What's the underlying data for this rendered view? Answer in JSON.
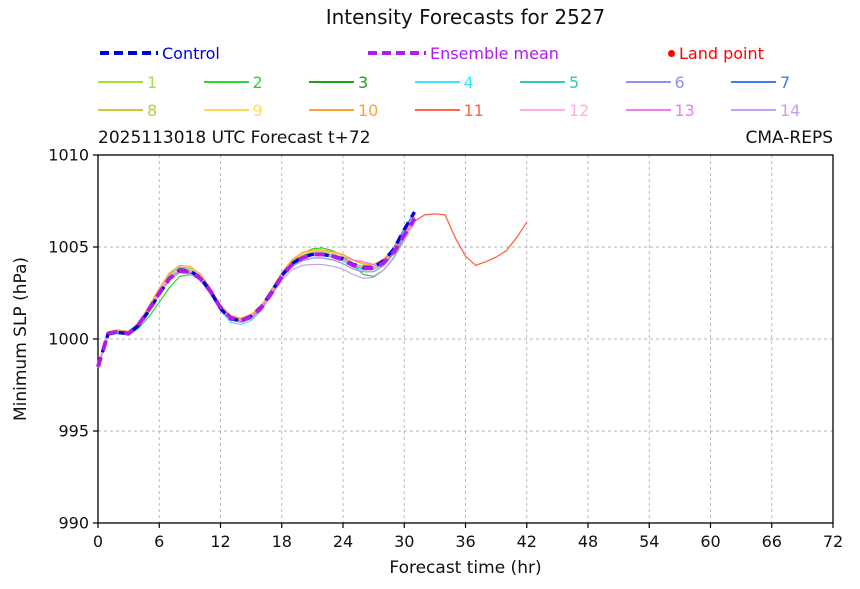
{
  "title": "Intensity Forecasts for 2527",
  "header": {
    "run_label": "2025113018 UTC Forecast t+72",
    "model_label": "CMA-REPS"
  },
  "legend": {
    "control": {
      "label": "Control",
      "color": "#0000e0"
    },
    "ensemble_mean": {
      "label": "Ensemble mean",
      "color": "#b31aee"
    },
    "land_point": {
      "label": "Land point",
      "color": "#ff0000"
    },
    "members": [
      {
        "label": "1",
        "color": "#9fe22f"
      },
      {
        "label": "2",
        "color": "#2fd32f"
      },
      {
        "label": "3",
        "color": "#1ca11c"
      },
      {
        "label": "4",
        "color": "#3ae4ff"
      },
      {
        "label": "5",
        "color": "#2fc9b5"
      },
      {
        "label": "6",
        "color": "#9090f2"
      },
      {
        "label": "7",
        "color": "#3c7cf0"
      },
      {
        "label": "8",
        "color": "#c6c83e"
      },
      {
        "label": "9",
        "color": "#ffd95c"
      },
      {
        "label": "10",
        "color": "#ffa03e"
      },
      {
        "label": "11",
        "color": "#ff6448"
      },
      {
        "label": "12",
        "color": "#ffaeea"
      },
      {
        "label": "13",
        "color": "#f07de8"
      },
      {
        "label": "14",
        "color": "#c2a2f2"
      }
    ]
  },
  "chart_data": {
    "type": "line",
    "title": "Intensity Forecasts for 2527",
    "xlabel": "Forecast time (hr)",
    "ylabel": "Minimum SLP (hPa)",
    "xlim": [
      0,
      72
    ],
    "ylim": [
      990,
      1010
    ],
    "xticks": [
      0,
      6,
      12,
      18,
      24,
      30,
      36,
      42,
      48,
      54,
      60,
      66,
      72
    ],
    "yticks": [
      990,
      995,
      1000,
      1005,
      1010
    ],
    "grid": true,
    "legend_position": "top",
    "x_unit": "hr",
    "series": [
      {
        "name": "1",
        "color": "#9fe22f",
        "width": 1.2,
        "x_start": 0,
        "x_step": 1,
        "values": [
          998.6,
          1000.35,
          1000.45,
          1000.4,
          1000.9,
          1001.7,
          1002.6,
          1003.4,
          1003.8,
          1003.75,
          1003.4,
          1002.7,
          1001.8,
          1001.25,
          1001.1,
          1001.3,
          1001.8,
          1002.6,
          1003.5,
          1004.2,
          1004.55,
          1004.75,
          1004.75,
          1004.65,
          1004.4,
          1004.1,
          1003.95,
          1003.95,
          1004.25,
          1004.85,
          1005.75,
          1006.65
        ]
      },
      {
        "name": "2",
        "color": "#2fd32f",
        "width": 1.2,
        "x_start": 0,
        "x_step": 1,
        "values": [
          998.5,
          1000.25,
          1000.3,
          1000.2,
          1000.6,
          1001.2,
          1002.0,
          1002.8,
          1003.4,
          1003.5,
          1003.3,
          1002.6,
          1001.7,
          1001.1,
          1001.0,
          1001.25,
          1001.8,
          1002.7,
          1003.6,
          1004.25,
          1004.65,
          1004.9,
          1004.95,
          1004.8,
          1004.5,
          1004.0,
          1003.5,
          1003.4,
          1003.75,
          1004.45,
          1005.55,
          1006.5
        ]
      },
      {
        "name": "3",
        "color": "#1ca11c",
        "width": 1.2,
        "x_start": 0,
        "x_step": 1,
        "values": [
          998.45,
          1000.25,
          1000.35,
          1000.25,
          1000.75,
          1001.55,
          1002.45,
          1003.25,
          1003.65,
          1003.6,
          1003.25,
          1002.55,
          1001.65,
          1001.1,
          1000.95,
          1001.15,
          1001.65,
          1002.45,
          1003.35,
          1004.0,
          1004.35,
          1004.55,
          1004.55,
          1004.45,
          1004.25,
          1003.95,
          1003.8,
          1003.8,
          1004.1,
          1004.7,
          1005.6,
          1006.5
        ]
      },
      {
        "name": "4",
        "color": "#3ae4ff",
        "width": 1.2,
        "x_start": 0,
        "x_step": 1,
        "values": [
          998.5,
          1000.2,
          1000.3,
          1000.25,
          1000.7,
          1001.5,
          1002.4,
          1003.2,
          1003.6,
          1003.55,
          1003.2,
          1002.5,
          1001.55,
          1000.9,
          1000.8,
          1001.0,
          1001.55,
          1002.4,
          1003.3,
          1004.0,
          1004.35,
          1004.55,
          1004.55,
          1004.45,
          1004.25,
          1003.95,
          1003.75,
          1003.8,
          1004.15,
          1004.85,
          1005.95,
          1006.85
        ]
      },
      {
        "name": "5",
        "color": "#2fc9b5",
        "width": 1.2,
        "x_start": 0,
        "x_step": 1,
        "values": [
          998.55,
          1000.35,
          1000.45,
          1000.35,
          1000.85,
          1001.7,
          1002.65,
          1003.5,
          1003.9,
          1003.85,
          1003.45,
          1002.7,
          1001.75,
          1001.2,
          1001.05,
          1001.25,
          1001.75,
          1002.55,
          1003.45,
          1004.1,
          1004.45,
          1004.65,
          1004.65,
          1004.55,
          1004.35,
          1004.05,
          1003.9,
          1003.9,
          1004.2,
          1004.8,
          1005.7,
          1006.6
        ]
      },
      {
        "name": "6",
        "color": "#9090f2",
        "width": 1.2,
        "x_start": 0,
        "x_step": 1,
        "values": [
          998.5,
          1000.3,
          1000.4,
          1000.3,
          1000.8,
          1001.6,
          1002.5,
          1003.3,
          1003.7,
          1003.65,
          1003.3,
          1002.6,
          1001.7,
          1001.15,
          1001.0,
          1001.2,
          1001.7,
          1002.5,
          1003.35,
          1003.95,
          1004.25,
          1004.4,
          1004.4,
          1004.3,
          1004.1,
          1003.8,
          1003.65,
          1003.65,
          1004.0,
          1004.65,
          1005.6,
          1006.5
        ]
      },
      {
        "name": "7",
        "color": "#3c7cf0",
        "width": 1.2,
        "x_start": 0,
        "x_step": 1,
        "values": [
          998.5,
          1000.3,
          1000.4,
          1000.3,
          1000.8,
          1001.65,
          1002.55,
          1003.35,
          1003.75,
          1003.7,
          1003.35,
          1002.65,
          1001.75,
          1001.2,
          1001.05,
          1001.25,
          1001.75,
          1002.55,
          1003.45,
          1004.1,
          1004.45,
          1004.65,
          1004.65,
          1004.55,
          1004.35,
          1004.05,
          1003.85,
          1003.9,
          1004.25,
          1005.0,
          1006.0,
          1006.9
        ]
      },
      {
        "name": "8",
        "color": "#c6c83e",
        "width": 1.2,
        "x_start": 0,
        "x_step": 1,
        "values": [
          998.55,
          1000.35,
          1000.45,
          1000.35,
          1000.85,
          1001.65,
          1002.55,
          1003.35,
          1003.75,
          1003.7,
          1003.4,
          1002.7,
          1001.8,
          1001.25,
          1001.1,
          1001.3,
          1001.8,
          1002.6,
          1003.45,
          1004.1,
          1004.45,
          1004.65,
          1004.65,
          1004.55,
          1004.4,
          1004.1,
          1003.9,
          1003.9,
          1004.2,
          1004.8,
          1005.7,
          1006.6
        ]
      },
      {
        "name": "9",
        "color": "#ffd95c",
        "width": 1.2,
        "x_start": 0,
        "x_step": 1,
        "values": [
          998.6,
          1000.4,
          1000.5,
          1000.4,
          1000.9,
          1001.75,
          1002.65,
          1003.45,
          1003.85,
          1003.8,
          1003.45,
          1002.75,
          1001.85,
          1001.3,
          1001.15,
          1001.35,
          1001.85,
          1002.65,
          1003.55,
          1004.2,
          1004.65,
          1004.8,
          1004.8,
          1004.7,
          1004.55,
          1004.25,
          1004.05,
          1004.05,
          1004.35,
          1004.95,
          1005.8,
          1006.65
        ]
      },
      {
        "name": "10",
        "color": "#ffa03e",
        "width": 1.2,
        "x_start": 0,
        "x_step": 1,
        "values": [
          998.6,
          1000.4,
          1000.5,
          1000.4,
          1000.9,
          1001.8,
          1002.75,
          1003.6,
          1004.0,
          1003.95,
          1003.55,
          1002.8,
          1001.85,
          1001.25,
          1001.1,
          1001.3,
          1001.8,
          1002.65,
          1003.6,
          1004.3,
          1004.7,
          1004.85,
          1004.85,
          1004.75,
          1004.6,
          1004.3,
          1004.1,
          1004.05,
          1004.35,
          1004.9,
          1005.75,
          1006.6
        ]
      },
      {
        "name": "11",
        "color": "#ff6448",
        "width": 1.3,
        "x_start": 0,
        "x_step": 1,
        "values": [
          998.5,
          1000.3,
          1000.4,
          1000.3,
          1000.8,
          1001.6,
          1002.5,
          1003.3,
          1003.7,
          1003.65,
          1003.3,
          1002.6,
          1001.7,
          1001.15,
          1001.0,
          1001.2,
          1001.7,
          1002.5,
          1003.4,
          1004.05,
          1004.45,
          1004.6,
          1004.6,
          1004.5,
          1004.35,
          1004.05,
          1003.85,
          1003.85,
          1004.15,
          1004.75,
          1005.65,
          1006.4,
          1006.75,
          1006.8,
          1006.75,
          1005.5,
          1004.5,
          1004.0,
          1004.2,
          1004.45,
          1004.8,
          1005.5,
          1006.35
        ]
      },
      {
        "name": "12",
        "color": "#ffaeea",
        "width": 1.2,
        "x_start": 0,
        "x_step": 1,
        "values": [
          998.55,
          1000.32,
          1000.42,
          1000.32,
          1000.82,
          1001.62,
          1002.52,
          1003.32,
          1003.72,
          1003.67,
          1003.32,
          1002.62,
          1001.72,
          1001.17,
          1001.02,
          1001.22,
          1001.72,
          1002.52,
          1003.42,
          1004.07,
          1004.42,
          1004.62,
          1004.62,
          1004.52,
          1004.32,
          1004.02,
          1003.87,
          1003.87,
          1004.17,
          1004.77,
          1005.67,
          1006.57
        ]
      },
      {
        "name": "13",
        "color": "#f07de8",
        "width": 1.2,
        "x_start": 0,
        "x_step": 1,
        "values": [
          998.5,
          1000.3,
          1000.4,
          1000.3,
          1000.8,
          1001.6,
          1002.5,
          1003.3,
          1003.7,
          1003.65,
          1003.3,
          1002.6,
          1001.7,
          1001.15,
          1001.0,
          1001.2,
          1001.7,
          1002.5,
          1003.4,
          1004.05,
          1004.4,
          1004.6,
          1004.6,
          1004.55,
          1004.45,
          1004.3,
          1004.2,
          1004.05,
          1004.25,
          1004.8,
          1005.65,
          1006.5
        ]
      },
      {
        "name": "14",
        "color": "#c2a2f2",
        "width": 1.2,
        "x_start": 0,
        "x_step": 1,
        "values": [
          998.45,
          1000.25,
          1000.35,
          1000.25,
          1000.7,
          1001.5,
          1002.4,
          1003.2,
          1003.6,
          1003.55,
          1003.2,
          1002.5,
          1001.6,
          1001.05,
          1000.9,
          1001.1,
          1001.6,
          1002.35,
          1003.2,
          1003.75,
          1004.0,
          1004.05,
          1004.05,
          1003.95,
          1003.8,
          1003.5,
          1003.3,
          1003.35,
          1003.75,
          1004.4,
          1005.35,
          1006.3
        ]
      },
      {
        "name": "Control",
        "color": "#0000e0",
        "width": 3.4,
        "dash": "9,6",
        "x_start": 0,
        "x_step": 1,
        "values": [
          998.5,
          1000.3,
          1000.35,
          1000.3,
          1000.75,
          1001.55,
          1002.45,
          1003.3,
          1003.75,
          1003.7,
          1003.35,
          1002.6,
          1001.65,
          1001.1,
          1001.0,
          1001.25,
          1001.75,
          1002.55,
          1003.45,
          1004.1,
          1004.45,
          1004.6,
          1004.6,
          1004.5,
          1004.35,
          1004.05,
          1003.9,
          1003.9,
          1004.25,
          1004.9,
          1005.95,
          1006.9
        ]
      },
      {
        "name": "Ensemble mean",
        "color": "#b31aee",
        "width": 4,
        "dash": "10,7",
        "x_start": 0,
        "x_step": 1,
        "values": [
          998.5,
          1000.3,
          1000.4,
          1000.3,
          1000.8,
          1001.6,
          1002.5,
          1003.3,
          1003.7,
          1003.65,
          1003.3,
          1002.6,
          1001.7,
          1001.15,
          1001.0,
          1001.2,
          1001.7,
          1002.5,
          1003.4,
          1004.05,
          1004.4,
          1004.6,
          1004.6,
          1004.5,
          1004.3,
          1004.0,
          1003.85,
          1003.85,
          1004.15,
          1004.75,
          1005.65,
          1006.55
        ]
      }
    ]
  }
}
